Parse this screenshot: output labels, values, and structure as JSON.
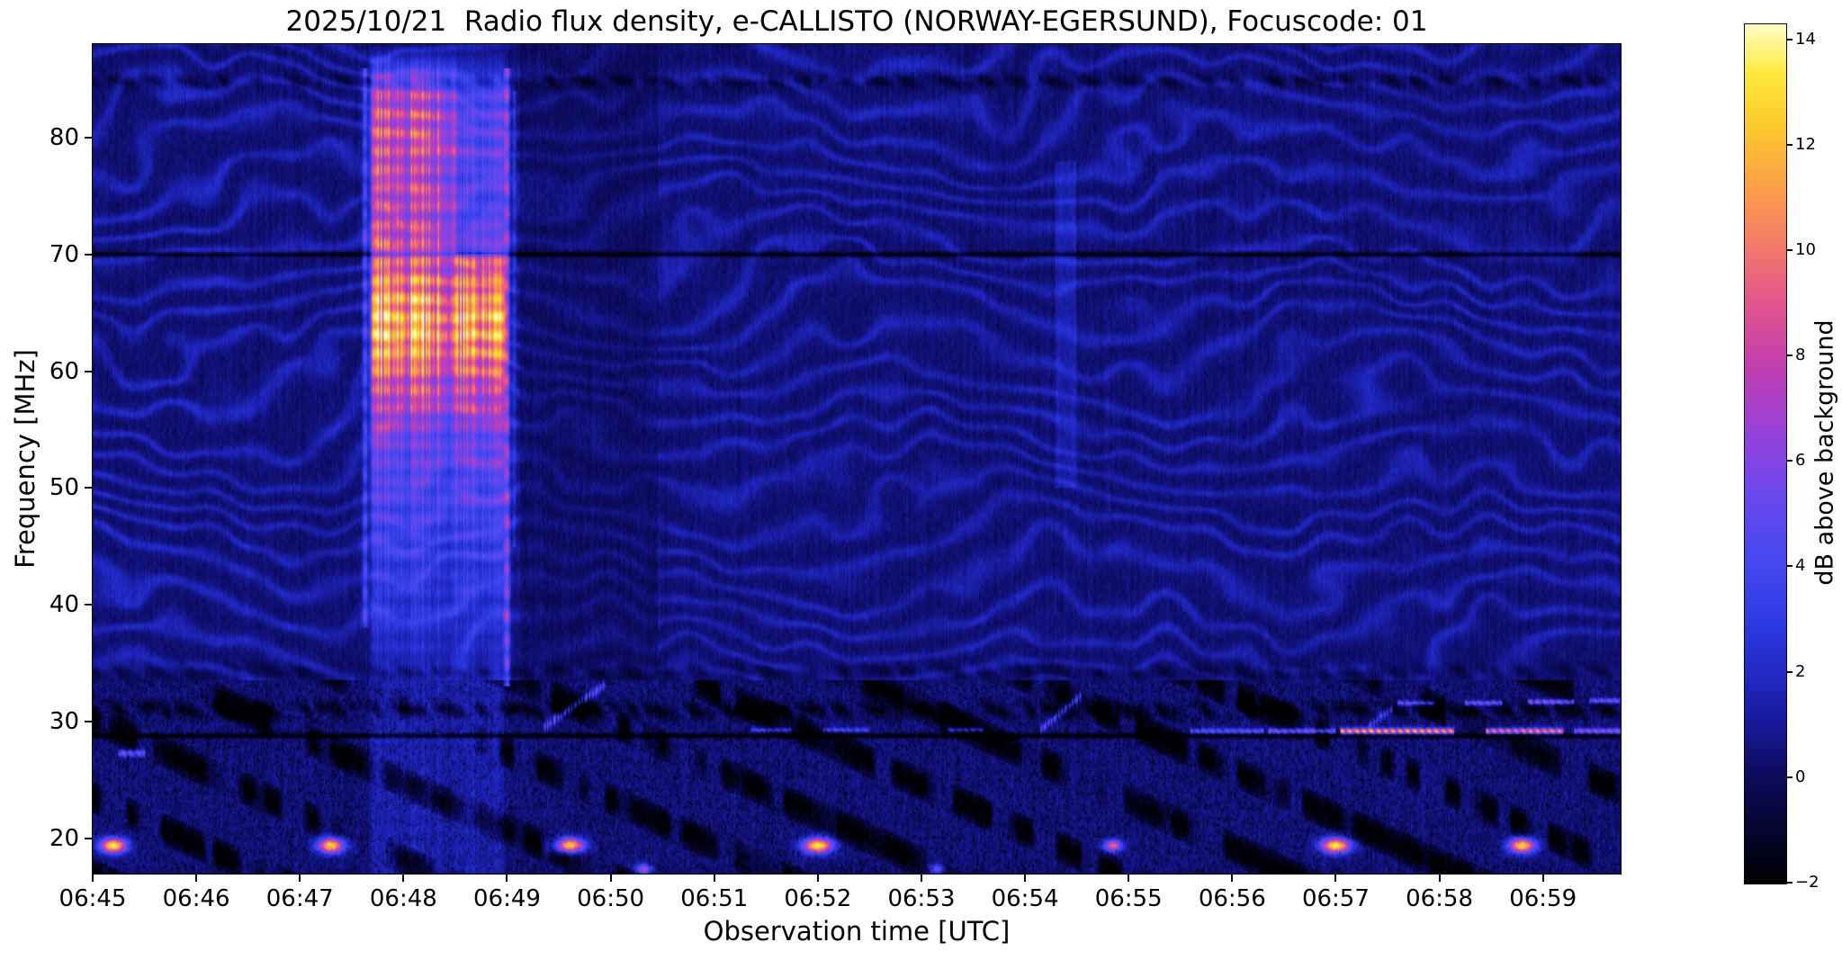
{
  "chart_data": {
    "type": "heatmap",
    "title": "2025/10/21  Radio flux density, e-CALLISTO (NORWAY-EGERSUND), Focuscode: 01",
    "xlabel": "Observation time [UTC]",
    "ylabel": "Frequency [MHz]",
    "x_range_min": [
      405,
      419.75
    ],
    "x_start_label": "06:45",
    "x_end_label": "06:59",
    "y_range_mhz": [
      17,
      88
    ],
    "grid": false,
    "x_ticks": [
      {
        "t": 405,
        "label": "06:45"
      },
      {
        "t": 406,
        "label": "06:46"
      },
      {
        "t": 407,
        "label": "06:47"
      },
      {
        "t": 408,
        "label": "06:48"
      },
      {
        "t": 409,
        "label": "06:49"
      },
      {
        "t": 410,
        "label": "06:50"
      },
      {
        "t": 411,
        "label": "06:51"
      },
      {
        "t": 412,
        "label": "06:52"
      },
      {
        "t": 413,
        "label": "06:53"
      },
      {
        "t": 414,
        "label": "06:54"
      },
      {
        "t": 415,
        "label": "06:55"
      },
      {
        "t": 416,
        "label": "06:56"
      },
      {
        "t": 417,
        "label": "06:57"
      },
      {
        "t": 418,
        "label": "06:58"
      },
      {
        "t": 419,
        "label": "06:59"
      }
    ],
    "y_ticks": [
      {
        "f": 20,
        "label": "20"
      },
      {
        "f": 30,
        "label": "30"
      },
      {
        "f": 40,
        "label": "40"
      },
      {
        "f": 50,
        "label": "50"
      },
      {
        "f": 60,
        "label": "60"
      },
      {
        "f": 70,
        "label": "70"
      },
      {
        "f": 80,
        "label": "80"
      }
    ],
    "colorbar": {
      "label": "dB above background",
      "range": [
        -2,
        14.3
      ],
      "ticks": [
        {
          "v": -2,
          "label": "−2"
        },
        {
          "v": 0,
          "label": "0"
        },
        {
          "v": 2,
          "label": "2"
        },
        {
          "v": 4,
          "label": "4"
        },
        {
          "v": 6,
          "label": "6"
        },
        {
          "v": 8,
          "label": "8"
        },
        {
          "v": 10,
          "label": "10"
        },
        {
          "v": 12,
          "label": "12"
        },
        {
          "v": 14,
          "label": "14"
        }
      ]
    },
    "colormap_stops": [
      [
        0.0,
        "#000003"
      ],
      [
        0.06,
        "#05052e"
      ],
      [
        0.12,
        "#0c0a5a"
      ],
      [
        0.18,
        "#161994"
      ],
      [
        0.24,
        "#2128c4"
      ],
      [
        0.3,
        "#2d3ae2"
      ],
      [
        0.37,
        "#4348f0"
      ],
      [
        0.45,
        "#6a47ee"
      ],
      [
        0.53,
        "#9a41d8"
      ],
      [
        0.6,
        "#c23eb0"
      ],
      [
        0.67,
        "#e25390"
      ],
      [
        0.74,
        "#f4796a"
      ],
      [
        0.81,
        "#fa9f48"
      ],
      [
        0.88,
        "#fcc92c"
      ],
      [
        0.94,
        "#ffe83a"
      ],
      [
        1.0,
        "#ffffc8"
      ]
    ],
    "features": {
      "burst": {
        "t0": 407.65,
        "t1": 409.0,
        "t_weak0": 408.35,
        "t_weak1": 408.48,
        "t_hi_dim": 408.5,
        "profile": [
          [
            33,
            1.2
          ],
          [
            38,
            2.2
          ],
          [
            44,
            3.2
          ],
          [
            50,
            4.6
          ],
          [
            54,
            6.0
          ],
          [
            57,
            8.0
          ],
          [
            60,
            10.5
          ],
          [
            62,
            12.5
          ],
          [
            64,
            13.6
          ],
          [
            66,
            12.6
          ],
          [
            68,
            11.0
          ],
          [
            70,
            9.4
          ],
          [
            73,
            8.4
          ],
          [
            76,
            8.2
          ],
          [
            79,
            9.2
          ],
          [
            82,
            8.8
          ],
          [
            84,
            7.4
          ],
          [
            85.8,
            4.5
          ],
          [
            87,
            1.2
          ],
          [
            88,
            0
          ]
        ]
      },
      "edge_lines": [
        {
          "t": 407.63,
          "hw": 0.018,
          "f0": 38,
          "f1": 86,
          "amp": 4.5
        },
        {
          "t": 409.0,
          "hw": 0.02,
          "f0": 33,
          "f1": 86,
          "amp": 6.5
        },
        {
          "t": 409.07,
          "hw": 0.012,
          "f0": 45,
          "f1": 84,
          "amp": 2.5
        }
      ],
      "post_burst_dim": {
        "t0": 409.12,
        "t1": 410.45
      },
      "faint_column": {
        "t0": 414.3,
        "t1": 414.5,
        "f0": 50,
        "f1": 78,
        "amp": 0.9
      },
      "dark_rows": [
        {
          "f": 70.0,
          "hw": 0.14,
          "depth": 2.6,
          "dashed": false
        },
        {
          "f": 28.8,
          "hw": 0.14,
          "depth": 2.8,
          "dashed": false
        },
        {
          "f": 31.0,
          "hw": 0.5,
          "depth": 2.0,
          "dashed": true
        },
        {
          "f": 84.8,
          "hw": 0.4,
          "depth": 1.5,
          "dashed": true
        },
        {
          "f": 34.3,
          "hw": 0.5,
          "depth": 1.1,
          "dashed": true
        }
      ],
      "diag_dark": {
        "slope": 4.0,
        "k": 0.95
      },
      "bright_segments": [
        {
          "f": 29.2,
          "hw": 0.16,
          "t0": 415.6,
          "t1": 416.3,
          "amp": 5.5
        },
        {
          "f": 29.2,
          "hw": 0.16,
          "t0": 416.35,
          "t1": 417.0,
          "amp": 7.0
        },
        {
          "f": 29.2,
          "hw": 0.18,
          "t0": 417.05,
          "t1": 418.15,
          "amp": 12.5
        },
        {
          "f": 29.2,
          "hw": 0.18,
          "t0": 418.45,
          "t1": 419.2,
          "amp": 11.5
        },
        {
          "f": 29.2,
          "hw": 0.16,
          "t0": 419.3,
          "t1": 419.75,
          "amp": 7.5
        },
        {
          "f": 29.3,
          "hw": 0.13,
          "t0": 411.35,
          "t1": 411.75,
          "amp": 4.0
        },
        {
          "f": 29.3,
          "hw": 0.13,
          "t0": 412.05,
          "t1": 412.5,
          "amp": 4.5
        },
        {
          "f": 29.3,
          "hw": 0.13,
          "t0": 413.25,
          "t1": 413.6,
          "amp": 5.0
        },
        {
          "f": 31.6,
          "hw": 0.14,
          "t0": 417.6,
          "t1": 417.95,
          "amp": 6.0
        },
        {
          "f": 31.6,
          "hw": 0.14,
          "t0": 418.25,
          "t1": 418.6,
          "amp": 7.0
        },
        {
          "f": 31.7,
          "hw": 0.14,
          "t0": 418.85,
          "t1": 419.3,
          "amp": 8.0
        },
        {
          "f": 31.8,
          "hw": 0.14,
          "t0": 419.45,
          "t1": 419.75,
          "amp": 6.5
        },
        {
          "f": 27.3,
          "hw": 0.2,
          "t0": 405.25,
          "t1": 405.5,
          "amp": 6.0
        }
      ],
      "blobs": [
        {
          "t": 405.2,
          "f": 19.4,
          "st": 0.09,
          "sf": 0.45,
          "amp": 13
        },
        {
          "t": 407.3,
          "f": 19.4,
          "st": 0.09,
          "sf": 0.45,
          "amp": 12.5
        },
        {
          "t": 409.6,
          "f": 19.4,
          "st": 0.1,
          "sf": 0.45,
          "amp": 13
        },
        {
          "t": 412.0,
          "f": 19.4,
          "st": 0.1,
          "sf": 0.45,
          "amp": 13
        },
        {
          "t": 414.85,
          "f": 19.4,
          "st": 0.06,
          "sf": 0.35,
          "amp": 9
        },
        {
          "t": 417.0,
          "f": 19.4,
          "st": 0.1,
          "sf": 0.45,
          "amp": 13
        },
        {
          "t": 418.8,
          "f": 19.4,
          "st": 0.09,
          "sf": 0.45,
          "amp": 12.5
        },
        {
          "t": 410.32,
          "f": 17.4,
          "st": 0.05,
          "sf": 0.3,
          "amp": 7
        },
        {
          "t": 413.15,
          "f": 17.4,
          "st": 0.04,
          "sf": 0.25,
          "amp": 5
        }
      ],
      "bright_diagonals": [
        {
          "t0": 409.35,
          "t1": 409.95,
          "f0": 29.5,
          "f1": 33.2,
          "amp": 5.5
        },
        {
          "t0": 414.15,
          "t1": 414.55,
          "f0": 29.3,
          "f1": 32.3,
          "amp": 5.0
        },
        {
          "t0": 417.3,
          "t1": 417.55,
          "f0": 29.5,
          "f1": 31.2,
          "amp": 4.0
        }
      ]
    }
  }
}
